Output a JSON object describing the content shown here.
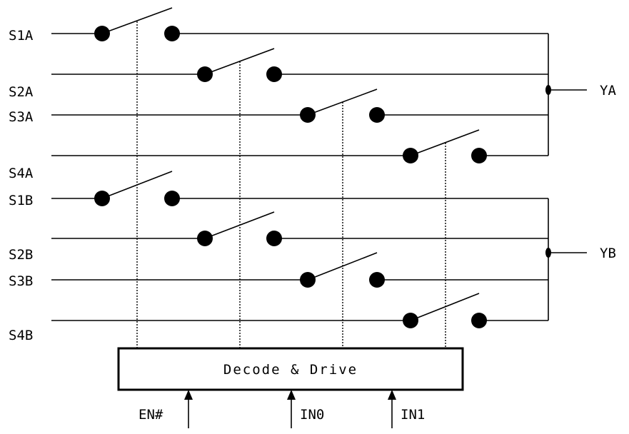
{
  "inputs_a": [
    "S1A",
    "S2A",
    "S3A",
    "S4A"
  ],
  "inputs_b": [
    "S1B",
    "S2B",
    "S3B",
    "S4B"
  ],
  "outputs": [
    "YA",
    "YB"
  ],
  "decoder": {
    "label": "Decode & Drive"
  },
  "control_inputs": [
    "EN#",
    "IN0",
    "IN1"
  ]
}
